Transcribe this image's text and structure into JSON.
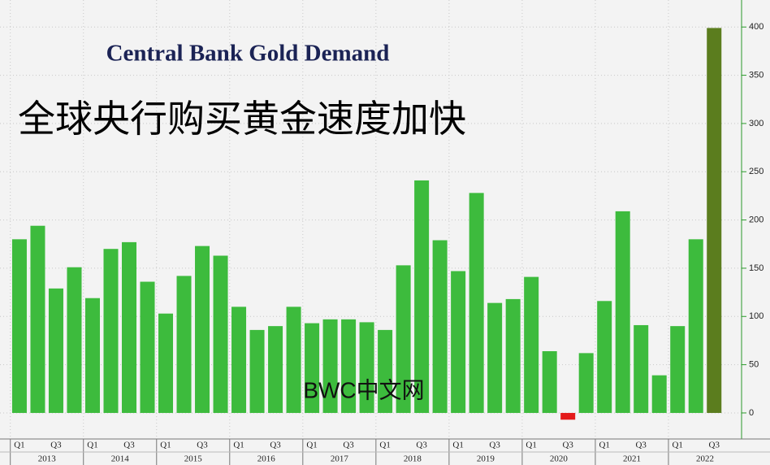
{
  "chart_data": {
    "type": "bar",
    "title": "Central Bank Gold Demand",
    "subtitle": "全球央行购买黄金速度加快",
    "watermark": "BWC中文网",
    "categories": [
      "Q1",
      null,
      "Q3",
      null,
      "Q1",
      null,
      "Q3",
      null,
      "Q1",
      null,
      "Q3",
      null,
      "Q1",
      null,
      "Q3",
      null,
      "Q1",
      null,
      "Q3",
      null,
      "Q1",
      null,
      "Q3",
      null,
      "Q1",
      null,
      "Q3",
      null,
      "Q1",
      null,
      "Q3",
      null,
      "Q1",
      null,
      "Q3",
      null,
      "Q1",
      null,
      "Q3"
    ],
    "years": [
      "2013",
      "2014",
      "2015",
      "2016",
      "2017",
      "2018",
      "2019",
      "2020",
      "2021",
      "2022"
    ],
    "values": [
      180,
      194,
      129,
      151,
      119,
      170,
      177,
      136,
      103,
      142,
      173,
      163,
      110,
      86,
      90,
      110,
      93,
      97,
      97,
      94,
      86,
      153,
      241,
      179,
      147,
      228,
      114,
      118,
      141,
      64,
      -7,
      62,
      116,
      209,
      91,
      39,
      90,
      180,
      399
    ],
    "color": "#3dbb3d",
    "negative_color": "#e41a1a",
    "last_color": "#5b7d1e",
    "ylim": [
      -27,
      428
    ],
    "yticks": [
      0,
      50,
      100,
      150,
      200,
      250,
      300,
      350,
      400
    ],
    "grid": true
  }
}
